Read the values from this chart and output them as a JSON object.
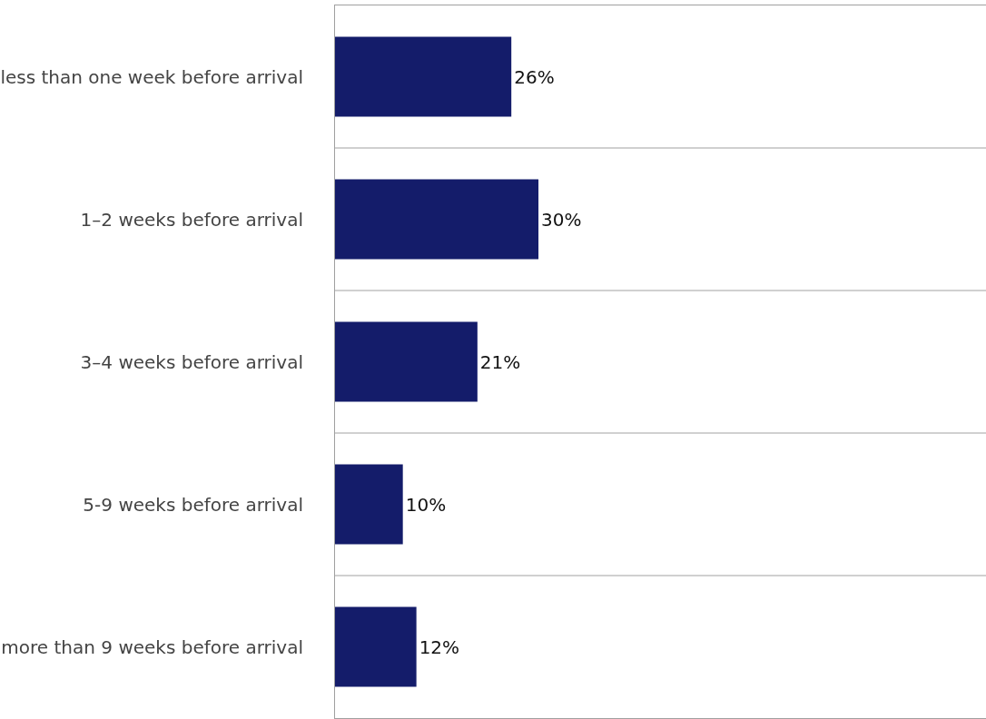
{
  "chart_data": {
    "type": "bar",
    "orientation": "horizontal",
    "categories": [
      "less than one week before arrival",
      "1–2 weeks before arrival",
      "3–4 weeks before arrival",
      "5-9 weeks before arrival",
      "more than 9 weeks before arrival"
    ],
    "values": [
      26,
      30,
      21,
      10,
      12
    ],
    "value_labels": [
      "26%",
      "30%",
      "21%",
      "10%",
      "12%"
    ],
    "color": "#141c6a",
    "xlim": [
      0,
      96
    ],
    "tick_labels": "y",
    "grid": "y",
    "legend": false
  }
}
